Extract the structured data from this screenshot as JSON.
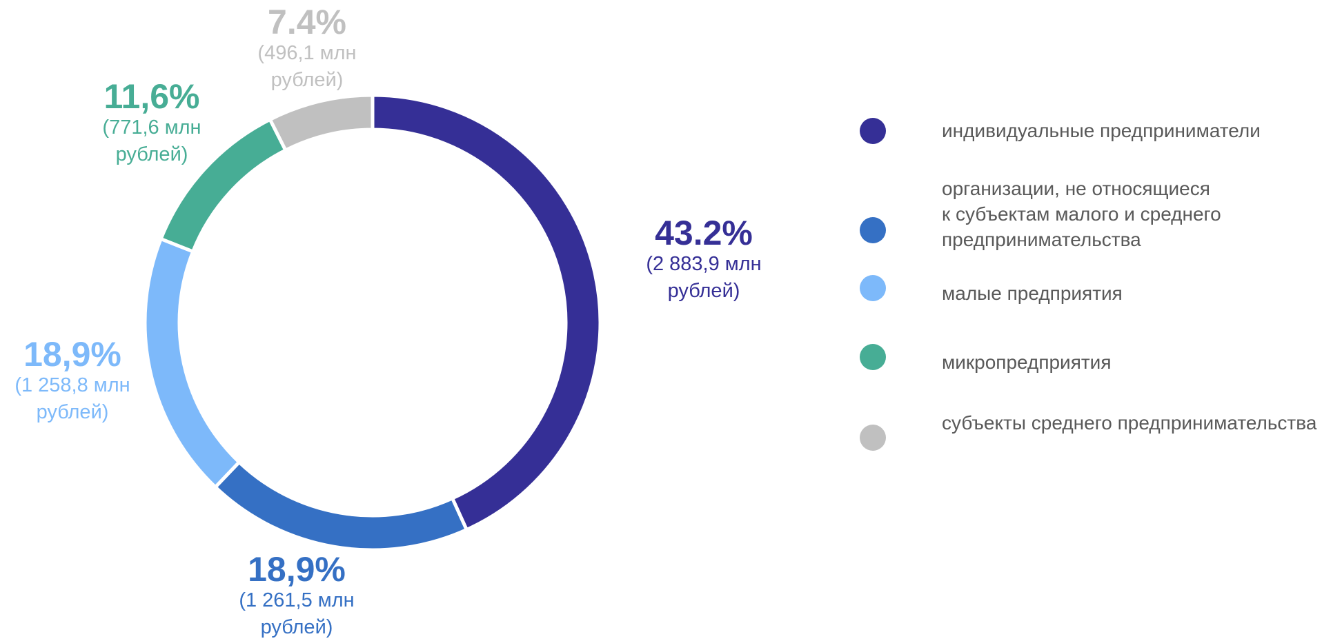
{
  "chart_data": {
    "type": "pie",
    "subtype": "donut",
    "start_angle_deg": 0,
    "direction": "clockwise",
    "slices": [
      {
        "name": "индивидуальные предприниматели",
        "percent_label": "43.2%",
        "amount_label": "(2 883,9 млн рублей)",
        "value": 2883.9,
        "color": "#352F96"
      },
      {
        "name": "организации, не относящиеся\nк субъектам малого и среднего\nпредпринимательства",
        "percent_label": "18,9%",
        "amount_label": "(1 261,5 млн рублей)",
        "value": 1261.5,
        "color": "#3570C4"
      },
      {
        "name": "малые предприятия",
        "percent_label": "18,9%",
        "amount_label": "(1 258,8 млн рублей)",
        "value": 1258.8,
        "color": "#7DB9FA"
      },
      {
        "name": "микропредприятия",
        "percent_label": "11,6%",
        "amount_label": "(771,6 млн рублей)",
        "value": 771.6,
        "color": "#47AD95"
      },
      {
        "name": "субъекты среднего предпринимательства",
        "percent_label": "7.4%",
        "amount_label": "(496,1 млн рублей)",
        "value": 496.1,
        "color": "#C0C0C0"
      }
    ],
    "legend_position": "right"
  }
}
